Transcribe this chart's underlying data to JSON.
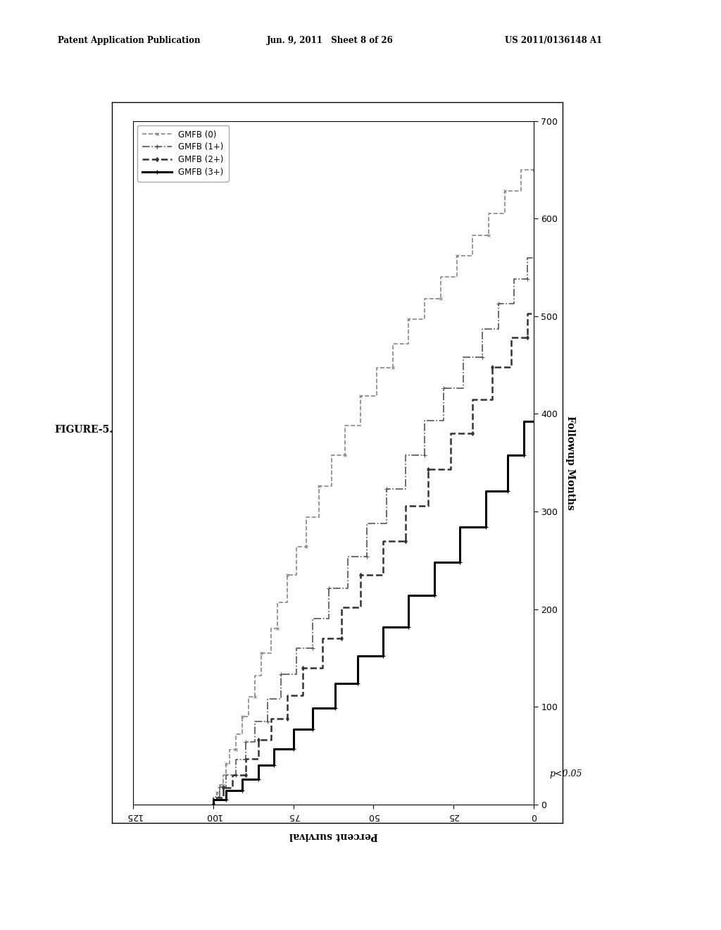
{
  "header_left": "Patent Application Publication",
  "header_center": "Jun. 9, 2011   Sheet 8 of 26",
  "header_right": "US 2011/0136148 A1",
  "figure_label": "FIGURE-5.",
  "p_value": "p<0.05",
  "xlabel": "Percent survival",
  "ylabel": "Followup Months",
  "xlim_left": 125,
  "xlim_right": 0,
  "ylim_bottom": 0,
  "ylim_top": 700,
  "xticks": [
    0,
    25,
    50,
    75,
    100,
    125
  ],
  "yticks": [
    0,
    100,
    200,
    300,
    400,
    500,
    600,
    700
  ],
  "legend_labels": [
    "GMFB (0)",
    "GMFB (1+)",
    "GMFB (2+)",
    "GMFB (3+)"
  ],
  "background_color": "#ffffff",
  "series": [
    {
      "label": "GMFB (0)",
      "color": "#888888",
      "linestyle": "--",
      "linewidth": 1.2,
      "marker": "x",
      "markersize": 3,
      "markevery": 3,
      "x": [
        100,
        100,
        99,
        99,
        98,
        98,
        97,
        97,
        96,
        96,
        95,
        95,
        93,
        93,
        91,
        91,
        89,
        89,
        87,
        87,
        85,
        85,
        82,
        82,
        80,
        80,
        77,
        77,
        74,
        74,
        71,
        71,
        67,
        67,
        63,
        63,
        59,
        59,
        54,
        54,
        49,
        49,
        44,
        44,
        39,
        39,
        34,
        34,
        29,
        29,
        24,
        24,
        19,
        19,
        14,
        14,
        9,
        9,
        4,
        4,
        0
      ],
      "y": [
        0,
        5,
        5,
        12,
        12,
        20,
        20,
        30,
        30,
        42,
        42,
        56,
        56,
        72,
        72,
        90,
        90,
        110,
        110,
        132,
        132,
        155,
        155,
        180,
        180,
        207,
        207,
        235,
        235,
        264,
        264,
        294,
        294,
        326,
        326,
        358,
        358,
        388,
        388,
        418,
        418,
        447,
        447,
        472,
        472,
        497,
        497,
        518,
        518,
        540,
        540,
        562,
        562,
        583,
        583,
        605,
        605,
        628,
        628,
        650,
        650
      ]
    },
    {
      "label": "GMFB (1+)",
      "color": "#555555",
      "linestyle": "-.",
      "linewidth": 1.2,
      "marker": "+",
      "markersize": 4,
      "markevery": 3,
      "x": [
        100,
        100,
        98,
        98,
        96,
        96,
        93,
        93,
        90,
        90,
        87,
        87,
        83,
        83,
        79,
        79,
        74,
        74,
        69,
        69,
        64,
        64,
        58,
        58,
        52,
        52,
        46,
        46,
        40,
        40,
        34,
        34,
        28,
        28,
        22,
        22,
        16,
        16,
        11,
        11,
        6,
        6,
        2,
        2,
        0
      ],
      "y": [
        0,
        8,
        8,
        18,
        18,
        30,
        30,
        46,
        46,
        64,
        64,
        85,
        85,
        108,
        108,
        133,
        133,
        160,
        160,
        190,
        190,
        221,
        221,
        254,
        254,
        288,
        288,
        323,
        323,
        358,
        358,
        393,
        393,
        426,
        426,
        458,
        458,
        487,
        487,
        513,
        513,
        538,
        538,
        560,
        560
      ]
    },
    {
      "label": "GMFB (2+)",
      "color": "#333333",
      "linestyle": "--",
      "linewidth": 1.8,
      "marker": "d",
      "markersize": 3,
      "markevery": 3,
      "x": [
        100,
        100,
        97,
        97,
        94,
        94,
        90,
        90,
        86,
        86,
        82,
        82,
        77,
        77,
        72,
        72,
        66,
        66,
        60,
        60,
        54,
        54,
        47,
        47,
        40,
        40,
        33,
        33,
        26,
        26,
        19,
        19,
        13,
        13,
        7,
        7,
        2,
        2,
        0
      ],
      "y": [
        0,
        7,
        7,
        17,
        17,
        30,
        30,
        47,
        47,
        66,
        66,
        88,
        88,
        112,
        112,
        140,
        140,
        170,
        170,
        202,
        202,
        235,
        235,
        270,
        270,
        306,
        306,
        343,
        343,
        380,
        380,
        415,
        415,
        448,
        448,
        478,
        478,
        503,
        503
      ]
    },
    {
      "label": "GMFB (3+)",
      "color": "#000000",
      "linestyle": "-",
      "linewidth": 2.2,
      "marker": "+",
      "markersize": 5,
      "markevery": 2,
      "x": [
        100,
        100,
        96,
        96,
        91,
        91,
        86,
        86,
        81,
        81,
        75,
        75,
        69,
        69,
        62,
        62,
        55,
        55,
        47,
        47,
        39,
        39,
        31,
        31,
        23,
        23,
        15,
        15,
        8,
        8,
        3,
        3,
        0
      ],
      "y": [
        0,
        5,
        5,
        14,
        14,
        26,
        26,
        40,
        40,
        57,
        57,
        77,
        77,
        99,
        99,
        124,
        124,
        152,
        152,
        182,
        182,
        214,
        214,
        248,
        248,
        284,
        284,
        321,
        321,
        358,
        358,
        392,
        392
      ]
    }
  ]
}
